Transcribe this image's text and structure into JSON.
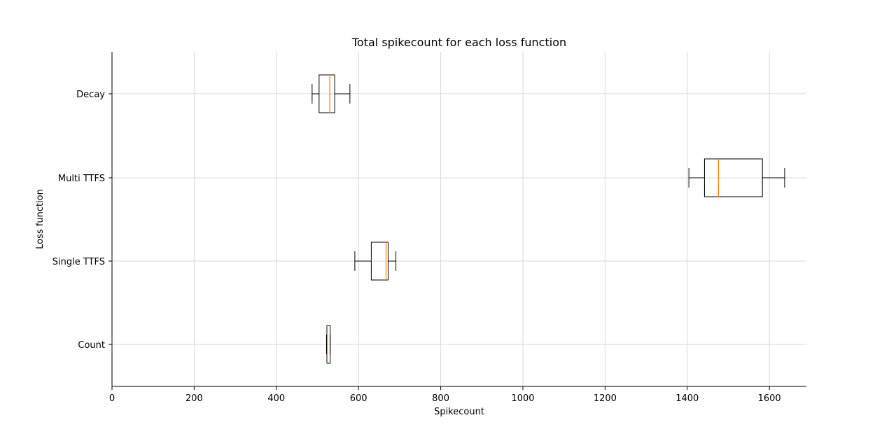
{
  "chart_data": {
    "type": "boxplot",
    "orientation": "horizontal",
    "title": "Total spikecount for each loss function",
    "xlabel": "Spikecount",
    "ylabel": "Loss function",
    "xlim": [
      0,
      1690
    ],
    "xticks": [
      0,
      200,
      400,
      600,
      800,
      1000,
      1200,
      1400,
      1600
    ],
    "grid": true,
    "colors": {
      "box": "#000000",
      "median": "#ff7f0e",
      "grid": "#d9d9d9"
    },
    "categories": [
      "Count",
      "Single TTFS",
      "Multi TTFS",
      "Decay"
    ],
    "boxes": [
      {
        "label": "Count",
        "whisker_low": 522,
        "q1": 523,
        "median": 524,
        "q3": 531,
        "whisker_high": 531
      },
      {
        "label": "Single TTFS",
        "whisker_low": 591,
        "q1": 631,
        "median": 667,
        "q3": 672,
        "whisker_high": 691
      },
      {
        "label": "Multi TTFS",
        "whisker_low": 1404,
        "q1": 1442,
        "median": 1476,
        "q3": 1583,
        "whisker_high": 1637
      },
      {
        "label": "Decay",
        "whisker_low": 487,
        "q1": 504,
        "median": 530,
        "q3": 542,
        "whisker_high": 579
      }
    ]
  }
}
